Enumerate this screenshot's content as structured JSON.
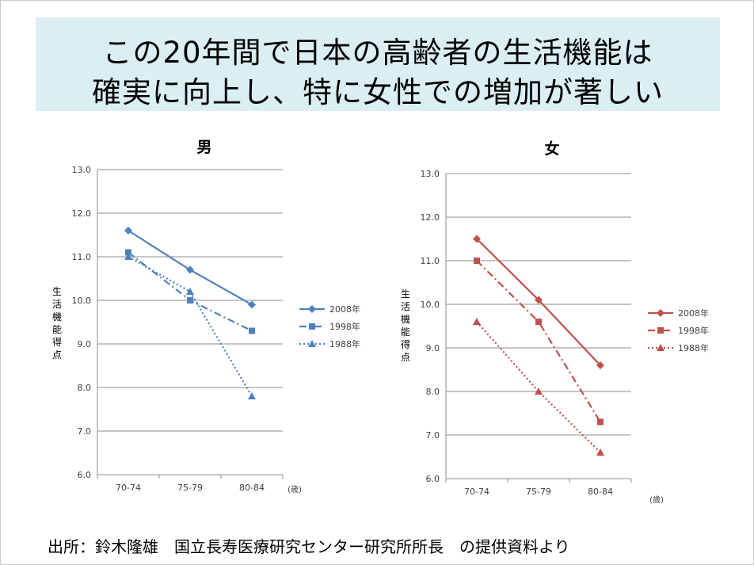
{
  "slide": {
    "title_line1": "この20年間で日本の高齢者の生活機能は",
    "title_line2": "確実に向上し、特に女性での増加が著しい",
    "source_note": "出所：鈴木隆雄　国立長寿医療研究センター研究所所長　の提供資料より"
  },
  "chart_data": [
    {
      "type": "line",
      "title": "男",
      "ylabel": "生活機能得点",
      "xlabel": "(歳)",
      "categories": [
        "70-74",
        "75-79",
        "80-84"
      ],
      "ylim": [
        6.0,
        13.0
      ],
      "yticks": [
        "6.0",
        "7.0",
        "8.0",
        "9.0",
        "10.0",
        "11.0",
        "12.0",
        "13.0"
      ],
      "color": "#4f81bd",
      "series": [
        {
          "name": "2008年",
          "values": [
            11.6,
            10.7,
            9.9
          ],
          "marker": "diamond",
          "dash": "solid"
        },
        {
          "name": "1998年",
          "values": [
            11.1,
            10.0,
            9.3
          ],
          "marker": "square",
          "dash": "dashdot"
        },
        {
          "name": "1988年",
          "values": [
            11.0,
            10.2,
            7.8
          ],
          "marker": "triangle",
          "dash": "dotted"
        }
      ]
    },
    {
      "type": "line",
      "title": "女",
      "ylabel": "生活機能得点",
      "xlabel": "(歳)",
      "categories": [
        "70-74",
        "75-79",
        "80-84"
      ],
      "ylim": [
        6.0,
        13.0
      ],
      "yticks": [
        "6.0",
        "7.0",
        "8.0",
        "9.0",
        "10.0",
        "11.0",
        "12.0",
        "13.0"
      ],
      "color": "#c0504d",
      "series": [
        {
          "name": "2008年",
          "values": [
            11.5,
            10.1,
            8.6
          ],
          "marker": "diamond",
          "dash": "solid"
        },
        {
          "name": "1998年",
          "values": [
            11.0,
            9.6,
            7.3
          ],
          "marker": "square",
          "dash": "dashdot"
        },
        {
          "name": "1988年",
          "values": [
            9.6,
            8.0,
            6.6
          ],
          "marker": "triangle",
          "dash": "dotted"
        }
      ]
    }
  ]
}
